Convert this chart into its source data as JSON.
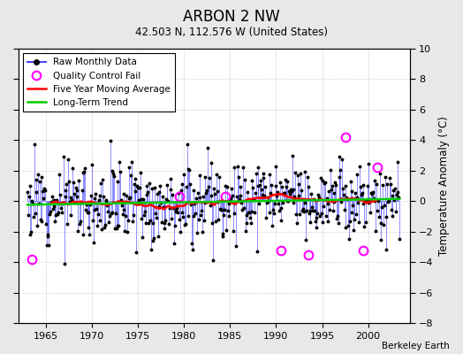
{
  "title": "ARBON 2 NW",
  "subtitle": "42.503 N, 112.576 W (United States)",
  "ylabel": "Temperature Anomaly (°C)",
  "attribution": "Berkeley Earth",
  "xlim": [
    1962.0,
    2004.5
  ],
  "ylim": [
    -8,
    10
  ],
  "yticks": [
    -8,
    -6,
    -4,
    -2,
    0,
    2,
    4,
    6,
    8,
    10
  ],
  "xticks": [
    1965,
    1970,
    1975,
    1980,
    1985,
    1990,
    1995,
    2000
  ],
  "bg_color": "#e8e8e8",
  "plot_bg_color": "#ffffff",
  "raw_color": "#4444ff",
  "qc_color": "#ff00ff",
  "moving_avg_color": "#ff0000",
  "trend_color": "#00cc00",
  "seed": 12
}
